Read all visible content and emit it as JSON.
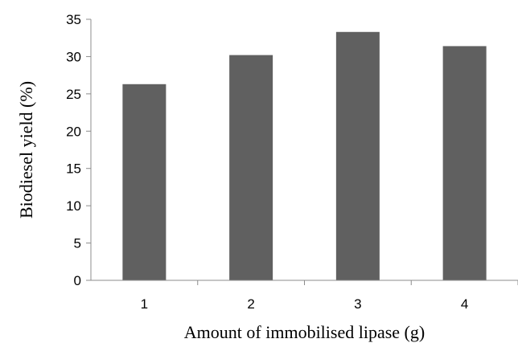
{
  "chart_data": {
    "type": "bar",
    "categories": [
      "1",
      "2",
      "3",
      "4"
    ],
    "values": [
      26.3,
      30.2,
      33.3,
      31.4
    ],
    "ylim": [
      0,
      35
    ],
    "yticks": [
      0,
      5,
      10,
      15,
      20,
      25,
      30,
      35
    ],
    "xlabel": "Amount of immobilised lipase (g)",
    "ylabel": "Biodiesel yield (%)",
    "grid": false,
    "legend": "none",
    "bar_color": "#606060"
  }
}
